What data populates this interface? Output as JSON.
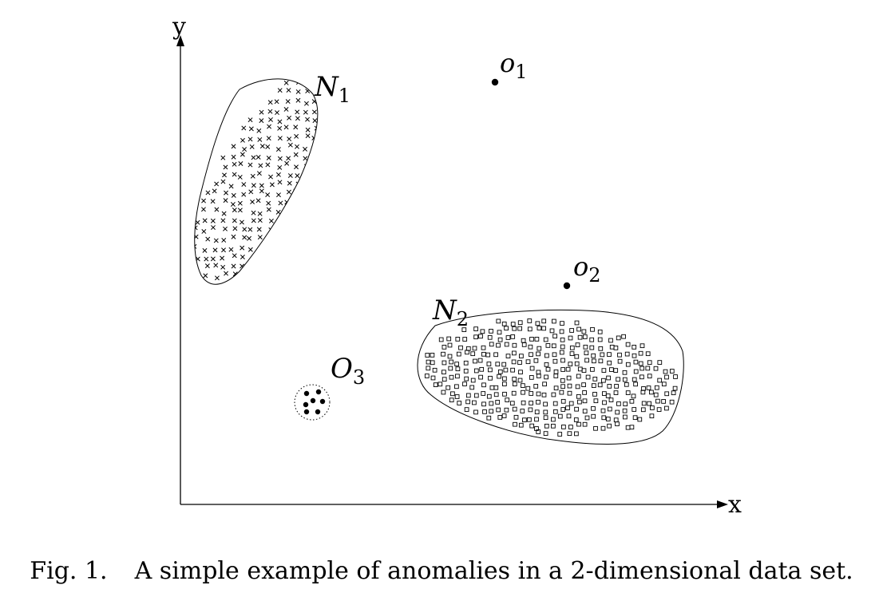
{
  "figure": {
    "axes": {
      "x_label": "x",
      "y_label": "y"
    },
    "clusters": [
      {
        "id": "N1",
        "label_main": "N",
        "label_sub": "1",
        "marker": "cross",
        "description_marker": "x-marks"
      },
      {
        "id": "N2",
        "label_main": "N",
        "label_sub": "2",
        "marker": "square",
        "description_marker": "open squares"
      }
    ],
    "anomalies": [
      {
        "id": "o1",
        "label_main": "o",
        "label_sub": "1",
        "kind": "single point"
      },
      {
        "id": "o2",
        "label_main": "o",
        "label_sub": "2",
        "kind": "single point"
      },
      {
        "id": "O3",
        "label_main": "O",
        "label_sub": "3",
        "kind": "small group",
        "point_count": 6
      }
    ]
  },
  "caption": {
    "number": "Fig. 1.",
    "text": "A simple example of anomalies in a 2-dimensional data set."
  }
}
